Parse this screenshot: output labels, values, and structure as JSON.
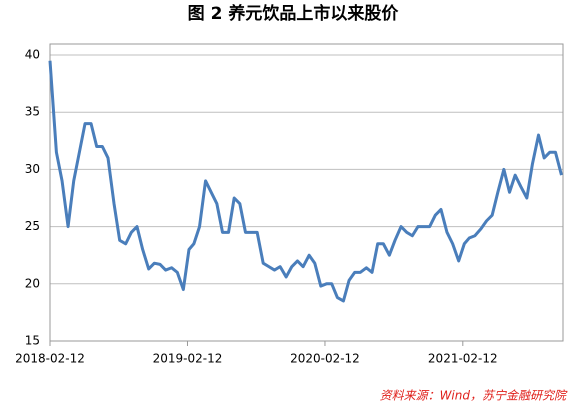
{
  "chart_data": {
    "type": "line",
    "title": "图 2  养元饮品上市以来股价",
    "source": "资料来源：Wind，苏宁金融研究院",
    "x": [
      "2018-02-12",
      "2018-03-01",
      "2018-03-16",
      "2018-04-01",
      "2018-04-16",
      "2018-05-01",
      "2018-05-16",
      "2018-06-01",
      "2018-06-16",
      "2018-07-01",
      "2018-07-16",
      "2018-08-01",
      "2018-08-16",
      "2018-09-01",
      "2018-09-16",
      "2018-10-01",
      "2018-10-16",
      "2018-11-01",
      "2018-11-16",
      "2018-12-01",
      "2018-12-16",
      "2019-01-01",
      "2019-01-16",
      "2019-02-01",
      "2019-02-16",
      "2019-03-01",
      "2019-03-16",
      "2019-04-01",
      "2019-04-16",
      "2019-05-01",
      "2019-05-16",
      "2019-06-01",
      "2019-06-16",
      "2019-07-01",
      "2019-07-16",
      "2019-08-01",
      "2019-08-16",
      "2019-09-01",
      "2019-09-16",
      "2019-10-01",
      "2019-10-16",
      "2019-11-01",
      "2019-11-16",
      "2019-12-01",
      "2019-12-16",
      "2020-01-01",
      "2020-01-16",
      "2020-02-01",
      "2020-02-16",
      "2020-03-01",
      "2020-03-16",
      "2020-04-01",
      "2020-04-16",
      "2020-05-01",
      "2020-05-16",
      "2020-06-01",
      "2020-06-16",
      "2020-07-01",
      "2020-07-16",
      "2020-08-01",
      "2020-08-16",
      "2020-09-01",
      "2020-09-16",
      "2020-10-01",
      "2020-10-16",
      "2020-11-01",
      "2020-11-16",
      "2020-12-01",
      "2020-12-16",
      "2021-01-01",
      "2021-01-16",
      "2021-02-01",
      "2021-02-16",
      "2021-03-01",
      "2021-03-16",
      "2021-04-01",
      "2021-04-16",
      "2021-05-01",
      "2021-05-16",
      "2021-06-01",
      "2021-06-16",
      "2021-07-01",
      "2021-07-16",
      "2021-08-01",
      "2021-08-16",
      "2021-09-01",
      "2021-09-16",
      "2021-10-01",
      "2021-10-16",
      "2021-11-01"
    ],
    "series": [
      {
        "color": "#4a7ebb",
        "values": [
          39.5,
          31.5,
          29,
          25,
          29,
          31.5,
          34,
          34,
          32,
          32,
          31,
          27,
          23.8,
          23.5,
          24.5,
          25,
          23,
          21.3,
          21.8,
          21.7,
          21.2,
          21.4,
          21,
          19.5,
          23,
          23.5,
          25,
          29,
          28,
          27,
          24.5,
          24.5,
          27.5,
          27,
          24.5,
          24.5,
          24.5,
          21.8,
          21.5,
          21.2,
          21.5,
          20.6,
          21.5,
          22,
          21.5,
          22.5,
          21.8,
          19.8,
          20,
          20,
          18.8,
          18.5,
          20.3,
          21,
          21,
          21.4,
          21,
          23.5,
          23.5,
          22.5,
          23.8,
          25,
          24.5,
          24.2,
          25,
          25,
          25,
          26,
          26.5,
          24.5,
          23.5,
          22,
          23.5,
          24,
          24.2,
          24.8,
          25.5,
          26,
          28,
          30,
          28,
          29.5,
          28.5,
          27.5,
          30.5,
          33,
          31,
          31.5,
          31.5,
          29.5
        ]
      }
    ],
    "xlim": [
      "2018-02-12",
      "2021-11-05"
    ],
    "xticks": [
      "2018-02-12",
      "2019-02-12",
      "2020-02-12",
      "2021-02-12"
    ],
    "ylim": [
      15,
      40
    ],
    "yticks": [
      15,
      20,
      25,
      30,
      35,
      40
    ],
    "grid": true
  }
}
